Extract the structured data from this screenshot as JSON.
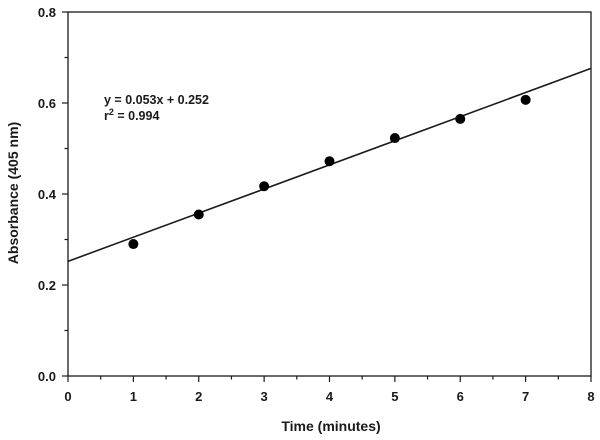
{
  "chart_data": {
    "type": "scatter",
    "xlabel": "Time (minutes)",
    "ylabel": "Absorbance (405 nm)",
    "xlim": [
      0,
      8
    ],
    "ylim": [
      0.0,
      0.8
    ],
    "x_ticks": [
      "0",
      "1",
      "2",
      "3",
      "4",
      "5",
      "6",
      "7",
      "8"
    ],
    "y_ticks": [
      "0.0",
      "0.2",
      "0.4",
      "0.6",
      "0.8"
    ],
    "x_minor_step": 0.5,
    "y_minor_step": 0.1,
    "grid": false,
    "points": [
      {
        "x": 1,
        "y": 0.29
      },
      {
        "x": 2,
        "y": 0.355
      },
      {
        "x": 3,
        "y": 0.417
      },
      {
        "x": 4,
        "y": 0.472
      },
      {
        "x": 5,
        "y": 0.523
      },
      {
        "x": 6,
        "y": 0.565
      },
      {
        "x": 7,
        "y": 0.607
      }
    ],
    "fit_line": {
      "slope": 0.053,
      "intercept": 0.252,
      "x_range": [
        0,
        8
      ]
    },
    "annotation": {
      "equation": "y = 0.053x + 0.252",
      "r_base": "r",
      "r_sup": "2",
      "r_value": " = 0.994"
    },
    "colors": {
      "marker": "#000000",
      "line": "#1a1a1a",
      "axis": "#1a1a1a"
    }
  }
}
